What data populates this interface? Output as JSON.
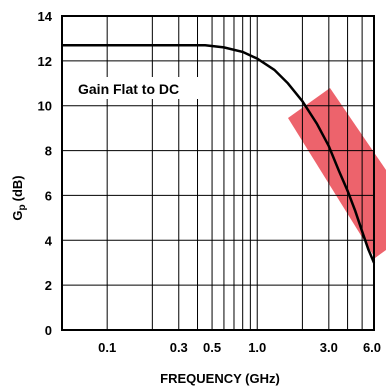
{
  "chart_data": {
    "type": "line",
    "title": "",
    "xlabel": "FREQUENCY (GHz)",
    "ylabel_main": "G",
    "ylabel_sub": "p",
    "ylabel_unit": "(dB)",
    "xscale": "log",
    "xlim": [
      0.05,
      6.0
    ],
    "ylim": [
      0,
      14
    ],
    "grid": true,
    "x_ticks": [
      {
        "value": 0.1,
        "label": "0.1"
      },
      {
        "value": 0.3,
        "label": "0.3"
      },
      {
        "value": 0.5,
        "label": "0.5"
      },
      {
        "value": 1.0,
        "label": "1.0"
      },
      {
        "value": 3.0,
        "label": "3.0"
      },
      {
        "value": 6.0,
        "label": "6.0"
      }
    ],
    "y_ticks": [
      {
        "value": 0,
        "label": "0"
      },
      {
        "value": 2,
        "label": "2"
      },
      {
        "value": 4,
        "label": "4"
      },
      {
        "value": 6,
        "label": "6"
      },
      {
        "value": 8,
        "label": "8"
      },
      {
        "value": 10,
        "label": "10"
      },
      {
        "value": 12,
        "label": "12"
      },
      {
        "value": 14,
        "label": "14"
      }
    ],
    "series": [
      {
        "x": [
          0.05,
          0.1,
          0.2,
          0.3,
          0.45,
          0.6,
          0.8,
          1.0,
          1.3,
          1.6,
          2.0,
          2.5,
          3.0,
          3.5,
          4.0,
          4.5,
          5.0,
          5.5,
          6.0
        ],
        "y": [
          12.7,
          12.7,
          12.7,
          12.7,
          12.7,
          12.6,
          12.4,
          12.1,
          11.6,
          11.0,
          10.2,
          9.2,
          8.2,
          7.1,
          6.2,
          5.3,
          4.4,
          3.6,
          3.0
        ]
      }
    ],
    "annotations": [
      {
        "text": "Gain Flat to DC",
        "x": 0.062,
        "y": 10.9
      }
    ],
    "gridline_x": [
      0.1,
      0.2,
      0.3,
      0.4,
      0.5,
      0.6,
      0.7,
      0.8,
      0.9,
      1.0,
      2.0,
      3.0,
      4.0,
      5.0,
      6.0
    ],
    "colors": {
      "line": "#000000",
      "grid": "#000000",
      "watermark": "#e8343f"
    }
  }
}
